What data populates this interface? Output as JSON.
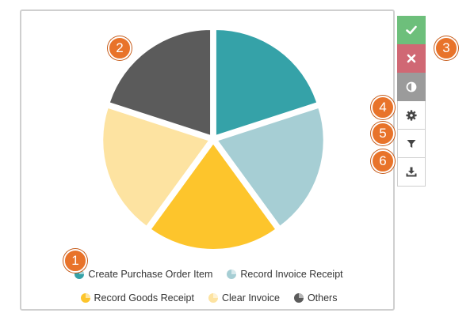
{
  "chart_data": {
    "type": "pie",
    "title": "",
    "slices": [
      {
        "label": "Create Purchase Order Item",
        "value": 20,
        "color": "#35a2a8"
      },
      {
        "label": "Record Invoice Receipt",
        "value": 20,
        "color": "#a6ced4"
      },
      {
        "label": "Record Goods Receipt",
        "value": 20,
        "color": "#fdc52c"
      },
      {
        "label": "Clear Invoice",
        "value": 20,
        "color": "#fde3a1"
      },
      {
        "label": "Others",
        "value": 20,
        "color": "#5b5b5b"
      }
    ],
    "legend_position": "bottom"
  },
  "toolbar": {
    "confirm": {
      "icon": "check-icon",
      "color": "#6dbf7b"
    },
    "cancel": {
      "icon": "close-icon",
      "color": "#d06874"
    },
    "contrast": {
      "icon": "contrast-icon",
      "color": "#9b9b9b"
    },
    "settings": {
      "icon": "gear-icon"
    },
    "filter": {
      "icon": "filter-icon"
    },
    "download": {
      "icon": "download-icon"
    }
  },
  "badges": [
    "1",
    "2",
    "3",
    "4",
    "5",
    "6"
  ]
}
